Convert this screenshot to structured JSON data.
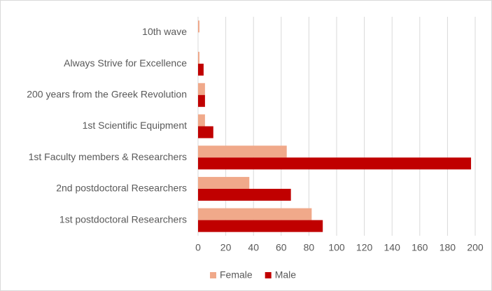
{
  "chart_data": {
    "type": "hbar",
    "categories": [
      "10th wave",
      "Always Strive for Excellence",
      "200 years from the Greek Revolution",
      "1st Scientific Equipment",
      "1st Faculty members & Researchers",
      "2nd postdoctoral Researchers",
      "1st postdoctoral Researchers"
    ],
    "series": [
      {
        "name": "Female",
        "color": "#f0a98a",
        "values": [
          1,
          1,
          5,
          5,
          64,
          37,
          82
        ]
      },
      {
        "name": "Male",
        "color": "#c00000",
        "values": [
          0,
          4,
          5,
          11,
          197,
          67,
          90
        ]
      }
    ],
    "xlim": [
      0,
      200
    ],
    "xticks": [
      0,
      20,
      40,
      60,
      80,
      100,
      120,
      140,
      160,
      180,
      200
    ],
    "grid": true,
    "legend": "bottom"
  }
}
